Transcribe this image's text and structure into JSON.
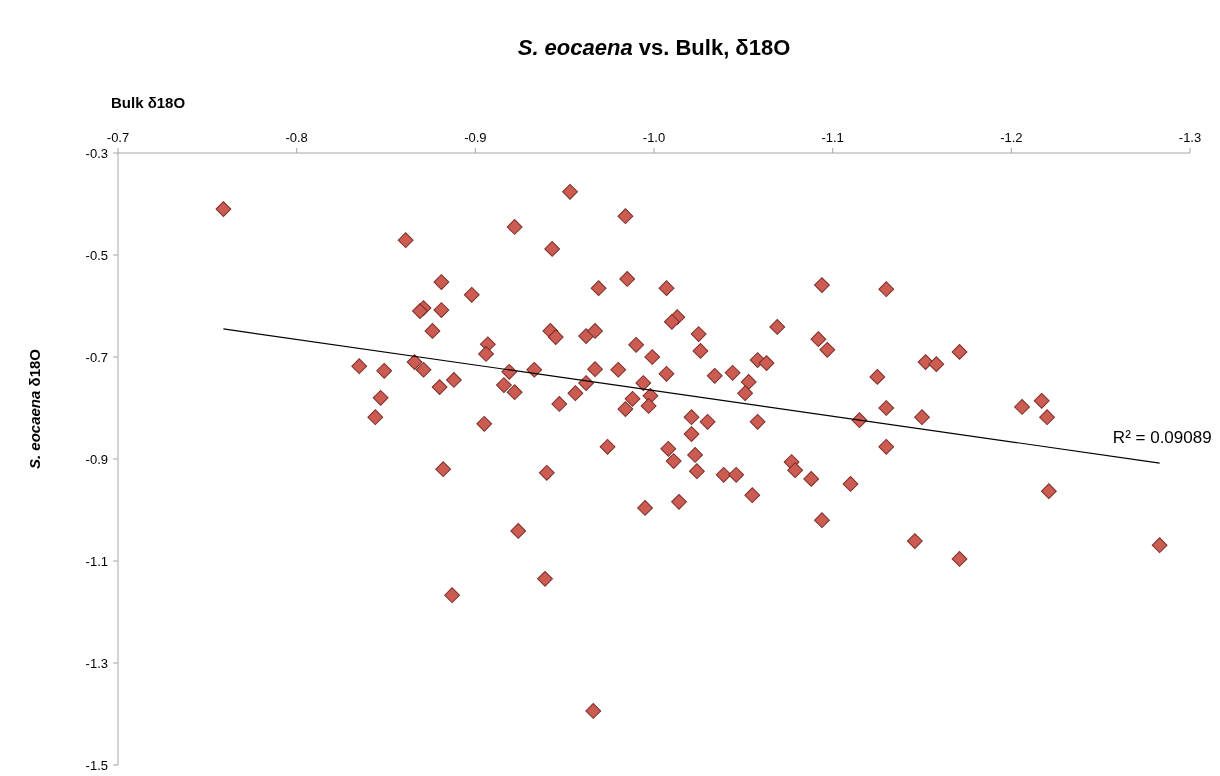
{
  "chart_data": {
    "type": "scatter",
    "title": "S. eocaena vs. Bulk, δ18O",
    "xlabel": "Bulk δ18O",
    "ylabel": "S. eocaena δ18O",
    "xlim": [
      -0.7,
      -1.3
    ],
    "xticks": [
      -0.7,
      -0.8,
      -0.9,
      {
        "value": -1.0,
        "label": "-1.0"
      },
      -1.1,
      -1.2,
      -1.3
    ],
    "ylim": [
      -1.5,
      -0.3
    ],
    "yticks": [
      -0.3,
      -0.5,
      -0.7,
      -0.9,
      -1.1,
      -1.3,
      -1.5
    ],
    "grid": false,
    "annotations": [
      {
        "text": "R² = 0.09089",
        "x": -1.283,
        "y": -0.908
      }
    ],
    "series": [
      {
        "color": "#cc5b52",
        "marker": "diamond",
        "x": [
          -0.759,
          -0.861,
          -0.881,
          -0.898,
          -0.871,
          -0.869,
          -0.881,
          -0.876,
          -0.907,
          -0.906,
          -0.922,
          -0.835,
          -0.849,
          -0.866,
          -0.871,
          -0.88,
          -0.888,
          -0.847,
          -0.844,
          -0.905,
          -0.919,
          -0.916,
          -0.922,
          -0.882,
          -0.953,
          -0.984,
          -0.943,
          -0.969,
          -0.985,
          -1.007,
          -1.094,
          -1.13,
          -1.013,
          -1.01,
          -1.025,
          -1.026,
          -1.069,
          -0.942,
          -0.945,
          -0.962,
          -0.967,
          -0.99,
          -0.999,
          -1.007,
          -1.092,
          -1.097,
          -1.058,
          -1.063,
          -1.034,
          -1.044,
          -1.053,
          -1.051,
          -1.125,
          -0.933,
          -0.967,
          -0.98,
          -0.956,
          -0.962,
          -0.994,
          -0.988,
          -0.998,
          -0.984,
          -0.997,
          -0.947,
          -1.021,
          -1.03,
          -1.021,
          -1.058,
          -1.115,
          -1.13,
          -0.974,
          -1.008,
          -1.011,
          -1.023,
          -1.13,
          -1.077,
          -1.079,
          -1.024,
          -0.94,
          -1.039,
          -1.046,
          -1.055,
          -1.088,
          -1.11,
          -0.995,
          -1.014,
          -1.094,
          -1.146,
          -1.171,
          -1.221,
          -1.283,
          -1.171,
          -1.152,
          -1.158,
          -1.15,
          -1.206,
          -1.217,
          -1.22,
          -0.924,
          -0.939,
          -0.887,
          -0.966
        ],
        "values": [
          -0.41,
          -0.471,
          -0.553,
          -0.578,
          -0.604,
          -0.61,
          -0.608,
          -0.649,
          -0.675,
          -0.694,
          -0.445,
          -0.718,
          -0.727,
          -0.71,
          -0.725,
          -0.759,
          -0.745,
          -0.78,
          -0.818,
          -0.831,
          -0.729,
          -0.755,
          -0.769,
          -0.92,
          -0.376,
          -0.424,
          -0.488,
          -0.565,
          -0.547,
          -0.565,
          -0.559,
          -0.567,
          -0.622,
          -0.631,
          -0.655,
          -0.688,
          -0.641,
          -0.649,
          -0.661,
          -0.659,
          -0.649,
          -0.676,
          -0.7,
          -0.733,
          -0.665,
          -0.686,
          -0.706,
          -0.712,
          -0.737,
          -0.731,
          -0.749,
          -0.771,
          -0.739,
          -0.725,
          -0.724,
          -0.725,
          -0.771,
          -0.751,
          -0.751,
          -0.782,
          -0.776,
          -0.802,
          -0.796,
          -0.792,
          -0.818,
          -0.827,
          -0.851,
          -0.827,
          -0.824,
          -0.8,
          -0.876,
          -0.88,
          -0.904,
          -0.892,
          -0.876,
          -0.906,
          -0.922,
          -0.924,
          -0.927,
          -0.931,
          -0.931,
          -0.971,
          -0.939,
          -0.949,
          -0.996,
          -0.984,
          -1.02,
          -1.061,
          -1.096,
          -0.963,
          -1.069,
          -0.69,
          -0.71,
          -0.714,
          -0.818,
          -0.798,
          -0.786,
          -0.818,
          -1.041,
          -1.135,
          -1.167,
          -1.394
        ]
      },
      {
        "type": "line",
        "marker": "none",
        "color": "#000000",
        "x": [
          -0.759,
          -1.283
        ],
        "values": [
          -0.645,
          -0.908
        ]
      }
    ]
  }
}
